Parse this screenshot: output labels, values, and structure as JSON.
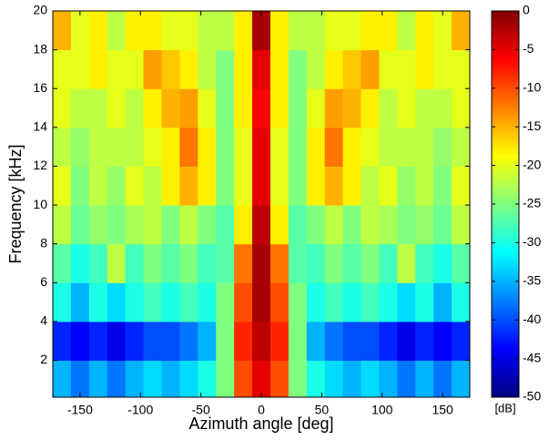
{
  "chart_data": {
    "type": "heatmap",
    "xlabel": "Azimuth angle [deg]",
    "ylabel": "Frequency [kHz]",
    "colormap": "jet",
    "xbins": [
      -172.5,
      -157.5,
      -142.5,
      -127.5,
      -112.5,
      -97.5,
      -82.5,
      -67.5,
      -52.5,
      -37.5,
      -22.5,
      -7.5,
      7.5,
      22.5,
      37.5,
      52.5,
      67.5,
      82.5,
      97.5,
      112.5,
      127.5,
      142.5,
      157.5,
      172.5
    ],
    "ybins": [
      0.1,
      2,
      4,
      6,
      8,
      10,
      12,
      14,
      16,
      18,
      20
    ],
    "z": [
      [
        -35,
        -38,
        -35,
        -38,
        -35,
        -33,
        -35,
        -33,
        -30,
        -25,
        -10,
        -5,
        -10,
        -25,
        -30,
        -33,
        -35,
        -33,
        -35,
        -38,
        -35,
        -38,
        -35
      ],
      [
        -42,
        -44,
        -42,
        -45,
        -42,
        -40,
        -40,
        -38,
        -35,
        -25,
        -8,
        -3,
        -8,
        -25,
        -35,
        -38,
        -40,
        -40,
        -42,
        -45,
        -42,
        -44,
        -42
      ],
      [
        -30,
        -35,
        -30,
        -33,
        -30,
        -28,
        -30,
        -28,
        -30,
        -25,
        -10,
        -2,
        -10,
        -25,
        -30,
        -28,
        -30,
        -28,
        -30,
        -33,
        -30,
        -35,
        -30
      ],
      [
        -27,
        -30,
        -28,
        -22,
        -28,
        -25,
        -27,
        -25,
        -28,
        -27,
        -12,
        -2,
        -12,
        -27,
        -28,
        -25,
        -27,
        -25,
        -28,
        -22,
        -28,
        -30,
        -27
      ],
      [
        -22,
        -26,
        -24,
        -25,
        -23,
        -22,
        -25,
        -22,
        -25,
        -27,
        -18,
        -3,
        -18,
        -27,
        -25,
        -22,
        -25,
        -22,
        -23,
        -25,
        -24,
        -26,
        -22
      ],
      [
        -20,
        -25,
        -22,
        -24,
        -20,
        -22,
        -18,
        -15,
        -18,
        -25,
        -20,
        -5,
        -20,
        -25,
        -18,
        -15,
        -18,
        -22,
        -20,
        -24,
        -22,
        -25,
        -20
      ],
      [
        -22,
        -24,
        -22,
        -22,
        -22,
        -20,
        -18,
        -12,
        -18,
        -25,
        -20,
        -5,
        -20,
        -25,
        -18,
        -12,
        -18,
        -20,
        -22,
        -22,
        -22,
        -24,
        -22
      ],
      [
        -20,
        -22,
        -22,
        -20,
        -22,
        -18,
        -15,
        -14,
        -20,
        -25,
        -18,
        -6,
        -18,
        -25,
        -20,
        -14,
        -15,
        -18,
        -22,
        -20,
        -22,
        -22,
        -20
      ],
      [
        -20,
        -20,
        -18,
        -20,
        -20,
        -14,
        -16,
        -18,
        -22,
        -25,
        -18,
        -5,
        -18,
        -25,
        -22,
        -18,
        -16,
        -14,
        -20,
        -20,
        -18,
        -20,
        -20
      ],
      [
        -15,
        -20,
        -18,
        -22,
        -18,
        -18,
        -20,
        -20,
        -22,
        -22,
        -18,
        -2,
        -18,
        -22,
        -22,
        -20,
        -20,
        -18,
        -18,
        -22,
        -18,
        -20,
        -15
      ]
    ],
    "xlim": [
      -172.5,
      172.5
    ],
    "ylim": [
      0.1,
      20
    ],
    "xticks": [
      -150,
      -100,
      -50,
      0,
      50,
      100,
      150
    ],
    "yticks": [
      2,
      4,
      6,
      8,
      10,
      12,
      14,
      16,
      18,
      20
    ],
    "clim": [
      -50,
      0
    ],
    "colorbar_ticks": [
      0,
      -5,
      -10,
      -15,
      -20,
      -25,
      -30,
      -35,
      -40,
      -45,
      -50
    ],
    "colorbar_label": "[dB]"
  }
}
